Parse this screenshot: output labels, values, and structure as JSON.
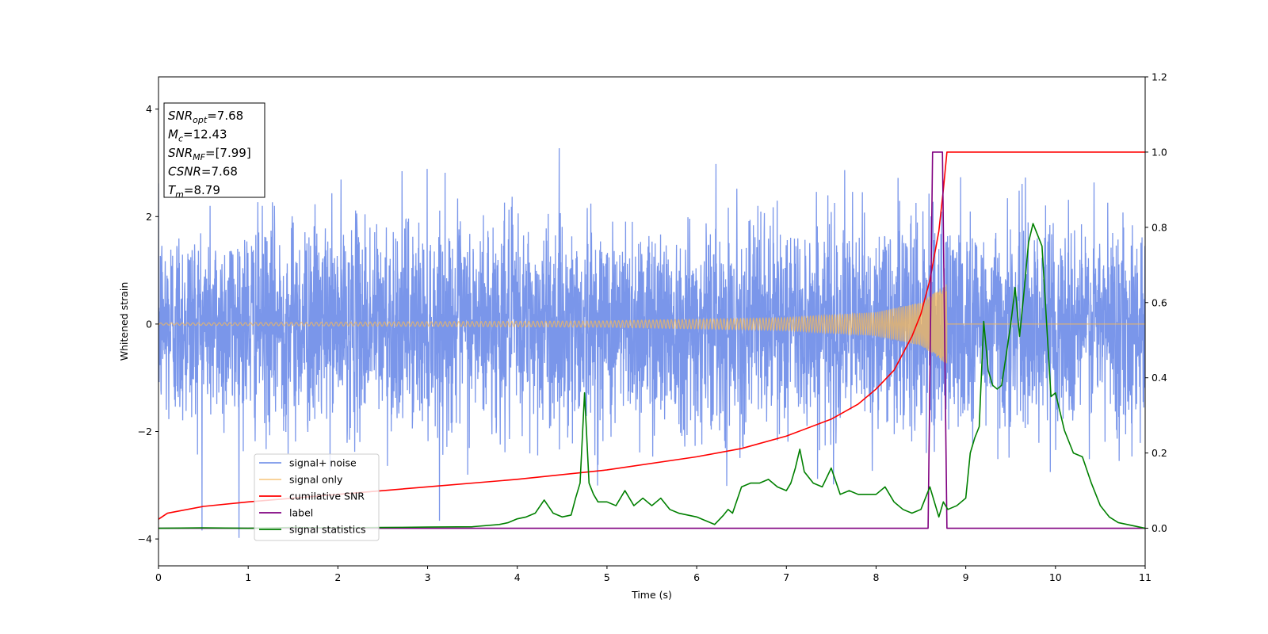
{
  "chart_data": {
    "type": "line",
    "xlabel": "Time (s)",
    "ylabel": "Whitened strain",
    "xlim": [
      0,
      11
    ],
    "ylim": [
      -4.5,
      4.6
    ],
    "y2lim": [
      -0.1,
      1.2
    ],
    "grid": false,
    "legend_position": "lower-left",
    "x_ticks": [
      "0",
      "1",
      "2",
      "3",
      "4",
      "5",
      "6",
      "7",
      "8",
      "9",
      "10",
      "11"
    ],
    "y_ticks": [
      "−4",
      "−2",
      "0",
      "2",
      "4"
    ],
    "y2_ticks": [
      "0.0",
      "0.2",
      "0.4",
      "0.6",
      "0.8",
      "1.0",
      "1.2"
    ],
    "annotation": {
      "lines": [
        {
          "main": "SNR",
          "sub": "opt",
          "value": "=7.68"
        },
        {
          "main": "M",
          "sub": "c",
          "value": "=12.43"
        },
        {
          "main": "SNR",
          "sub": "MF",
          "value": "=[7.99]"
        },
        {
          "main": "CSNR",
          "sub": "",
          "value": "=7.68"
        },
        {
          "main": "T",
          "sub": "m",
          "value": "=8.79"
        }
      ]
    },
    "series": [
      {
        "name": "signal+ noise",
        "color": "#4169e1",
        "axis": "left",
        "style": "noise",
        "sigma": 0.95,
        "peak": 4.15,
        "min": -4.1
      },
      {
        "name": "signal only",
        "color": "#f5b85a",
        "axis": "left",
        "style": "chirp",
        "t_merge": 8.79,
        "envelope": [
          [
            0,
            0.02
          ],
          [
            5,
            0.06
          ],
          [
            7,
            0.12
          ],
          [
            8,
            0.22
          ],
          [
            8.5,
            0.4
          ],
          [
            8.79,
            0.75
          ]
        ]
      },
      {
        "name": "cumilative SNR",
        "color": "#ff0000",
        "axis": "right",
        "x": [
          0,
          0.1,
          0.5,
          1,
          2,
          3,
          4,
          5,
          6,
          6.5,
          7,
          7.5,
          7.8,
          8.0,
          8.2,
          8.4,
          8.5,
          8.6,
          8.7,
          8.75,
          8.79,
          8.8,
          11
        ],
        "y": [
          0.024,
          0.04,
          0.058,
          0.07,
          0.09,
          0.11,
          0.13,
          0.155,
          0.19,
          0.212,
          0.245,
          0.29,
          0.33,
          0.37,
          0.42,
          0.51,
          0.57,
          0.66,
          0.79,
          0.9,
          1.0,
          1.0,
          1.0
        ]
      },
      {
        "name": "label",
        "color": "#800080",
        "axis": "right",
        "x": [
          0,
          8.58,
          8.63,
          8.74,
          8.79,
          11
        ],
        "y": [
          0,
          0,
          1,
          1,
          0,
          0
        ]
      },
      {
        "name": "signal statistics",
        "color": "#008000",
        "axis": "right",
        "x": [
          0,
          0.5,
          1,
          1.5,
          2,
          2.5,
          3,
          3.5,
          3.8,
          3.9,
          4.0,
          4.1,
          4.2,
          4.3,
          4.4,
          4.5,
          4.6,
          4.65,
          4.7,
          4.75,
          4.8,
          4.85,
          4.9,
          5.0,
          5.1,
          5.2,
          5.3,
          5.4,
          5.5,
          5.6,
          5.7,
          5.8,
          6.0,
          6.1,
          6.2,
          6.3,
          6.35,
          6.4,
          6.5,
          6.6,
          6.7,
          6.8,
          6.9,
          7.0,
          7.05,
          7.1,
          7.15,
          7.2,
          7.3,
          7.4,
          7.5,
          7.6,
          7.7,
          7.8,
          7.9,
          8.0,
          8.1,
          8.2,
          8.3,
          8.4,
          8.5,
          8.6,
          8.65,
          8.7,
          8.75,
          8.8,
          8.9,
          9.0,
          9.05,
          9.1,
          9.15,
          9.2,
          9.25,
          9.3,
          9.35,
          9.4,
          9.45,
          9.5,
          9.55,
          9.6,
          9.65,
          9.7,
          9.75,
          9.8,
          9.85,
          9.9,
          9.95,
          10.0,
          10.05,
          10.1,
          10.2,
          10.3,
          10.4,
          10.5,
          10.6,
          10.7,
          10.8,
          10.9,
          11.0
        ],
        "y": [
          0.0,
          0.001,
          0.0,
          0.002,
          0.001,
          0.002,
          0.003,
          0.004,
          0.01,
          0.015,
          0.025,
          0.03,
          0.04,
          0.075,
          0.04,
          0.03,
          0.035,
          0.08,
          0.12,
          0.36,
          0.12,
          0.09,
          0.07,
          0.07,
          0.06,
          0.1,
          0.06,
          0.08,
          0.06,
          0.08,
          0.05,
          0.04,
          0.03,
          0.02,
          0.01,
          0.035,
          0.05,
          0.04,
          0.11,
          0.12,
          0.12,
          0.13,
          0.11,
          0.1,
          0.12,
          0.16,
          0.21,
          0.15,
          0.12,
          0.11,
          0.16,
          0.09,
          0.1,
          0.09,
          0.09,
          0.09,
          0.11,
          0.07,
          0.05,
          0.04,
          0.05,
          0.11,
          0.07,
          0.03,
          0.07,
          0.05,
          0.06,
          0.08,
          0.2,
          0.24,
          0.27,
          0.55,
          0.42,
          0.38,
          0.37,
          0.38,
          0.46,
          0.54,
          0.64,
          0.51,
          0.63,
          0.76,
          0.81,
          0.78,
          0.75,
          0.55,
          0.35,
          0.36,
          0.31,
          0.26,
          0.2,
          0.19,
          0.12,
          0.06,
          0.03,
          0.015,
          0.01,
          0.005,
          0.0
        ]
      }
    ]
  }
}
